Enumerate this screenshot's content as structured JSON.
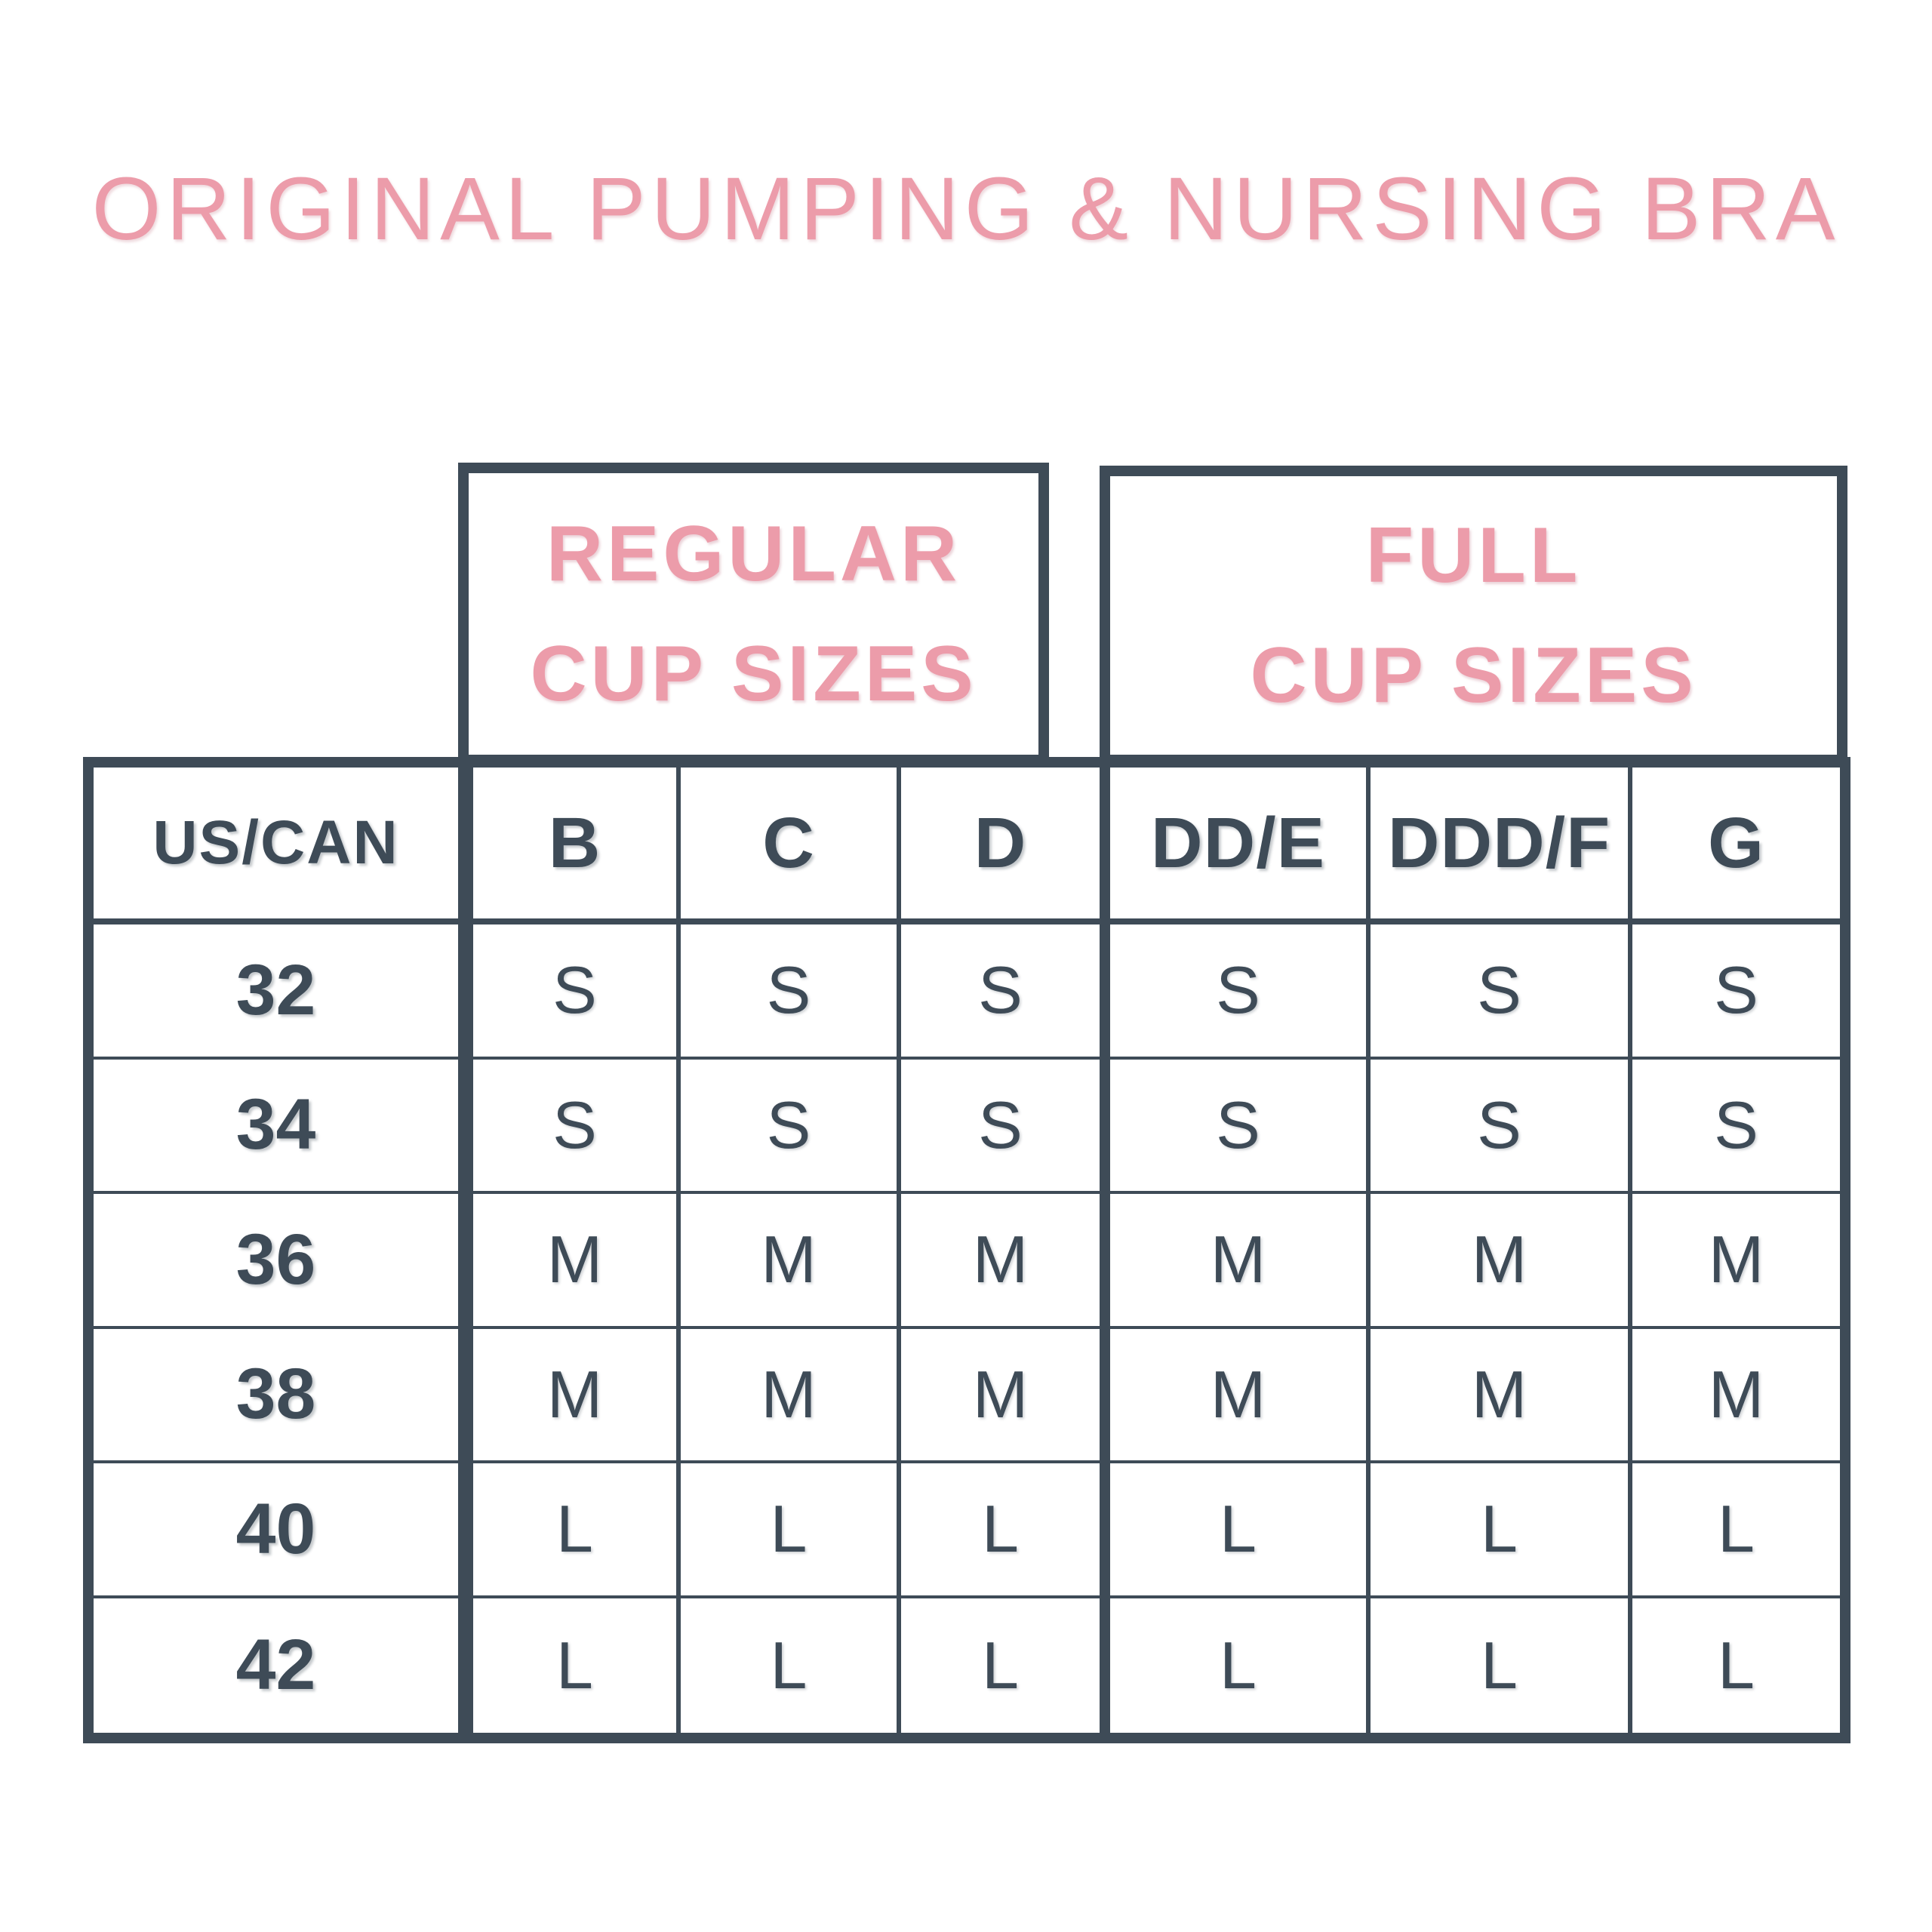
{
  "title": "ORIGINAL PUMPING & NURSING BRA",
  "colors": {
    "pink": "#ec9caa",
    "dark_slate": "#3e4b57",
    "background": "#ffffff"
  },
  "groups": {
    "regular": {
      "line1": "REGULAR",
      "line2": "CUP SIZES"
    },
    "full": {
      "line1": "FULL",
      "line2": "CUP SIZES"
    }
  },
  "table": {
    "corner_header": "US/CAN",
    "column_headers": [
      "B",
      "C",
      "D",
      "DD/E",
      "DDD/F",
      "G"
    ],
    "rows": [
      {
        "band": "32",
        "values": [
          "S",
          "S",
          "S",
          "S",
          "S",
          "S"
        ]
      },
      {
        "band": "34",
        "values": [
          "S",
          "S",
          "S",
          "S",
          "S",
          "S"
        ]
      },
      {
        "band": "36",
        "values": [
          "M",
          "M",
          "M",
          "M",
          "M",
          "M"
        ]
      },
      {
        "band": "38",
        "values": [
          "M",
          "M",
          "M",
          "M",
          "M",
          "M"
        ]
      },
      {
        "band": "40",
        "values": [
          "L",
          "L",
          "L",
          "L",
          "L",
          "L"
        ]
      },
      {
        "band": "42",
        "values": [
          "L",
          "L",
          "L",
          "L",
          "L",
          "L"
        ]
      }
    ]
  },
  "chart_data": {
    "type": "table",
    "title": "ORIGINAL PUMPING & NURSING BRA",
    "row_header": "US/CAN",
    "column_groups": [
      {
        "label": "REGULAR CUP SIZES",
        "columns": [
          "B",
          "C",
          "D"
        ]
      },
      {
        "label": "FULL CUP SIZES",
        "columns": [
          "DD/E",
          "DDD/F",
          "G"
        ]
      }
    ],
    "columns": [
      "B",
      "C",
      "D",
      "DD/E",
      "DDD/F",
      "G"
    ],
    "rows": [
      {
        "band": "32",
        "values": [
          "S",
          "S",
          "S",
          "S",
          "S",
          "S"
        ]
      },
      {
        "band": "34",
        "values": [
          "S",
          "S",
          "S",
          "S",
          "S",
          "S"
        ]
      },
      {
        "band": "36",
        "values": [
          "M",
          "M",
          "M",
          "M",
          "M",
          "M"
        ]
      },
      {
        "band": "38",
        "values": [
          "M",
          "M",
          "M",
          "M",
          "M",
          "M"
        ]
      },
      {
        "band": "40",
        "values": [
          "L",
          "L",
          "L",
          "L",
          "L",
          "L"
        ]
      },
      {
        "band": "42",
        "values": [
          "L",
          "L",
          "L",
          "L",
          "L",
          "L"
        ]
      }
    ]
  }
}
